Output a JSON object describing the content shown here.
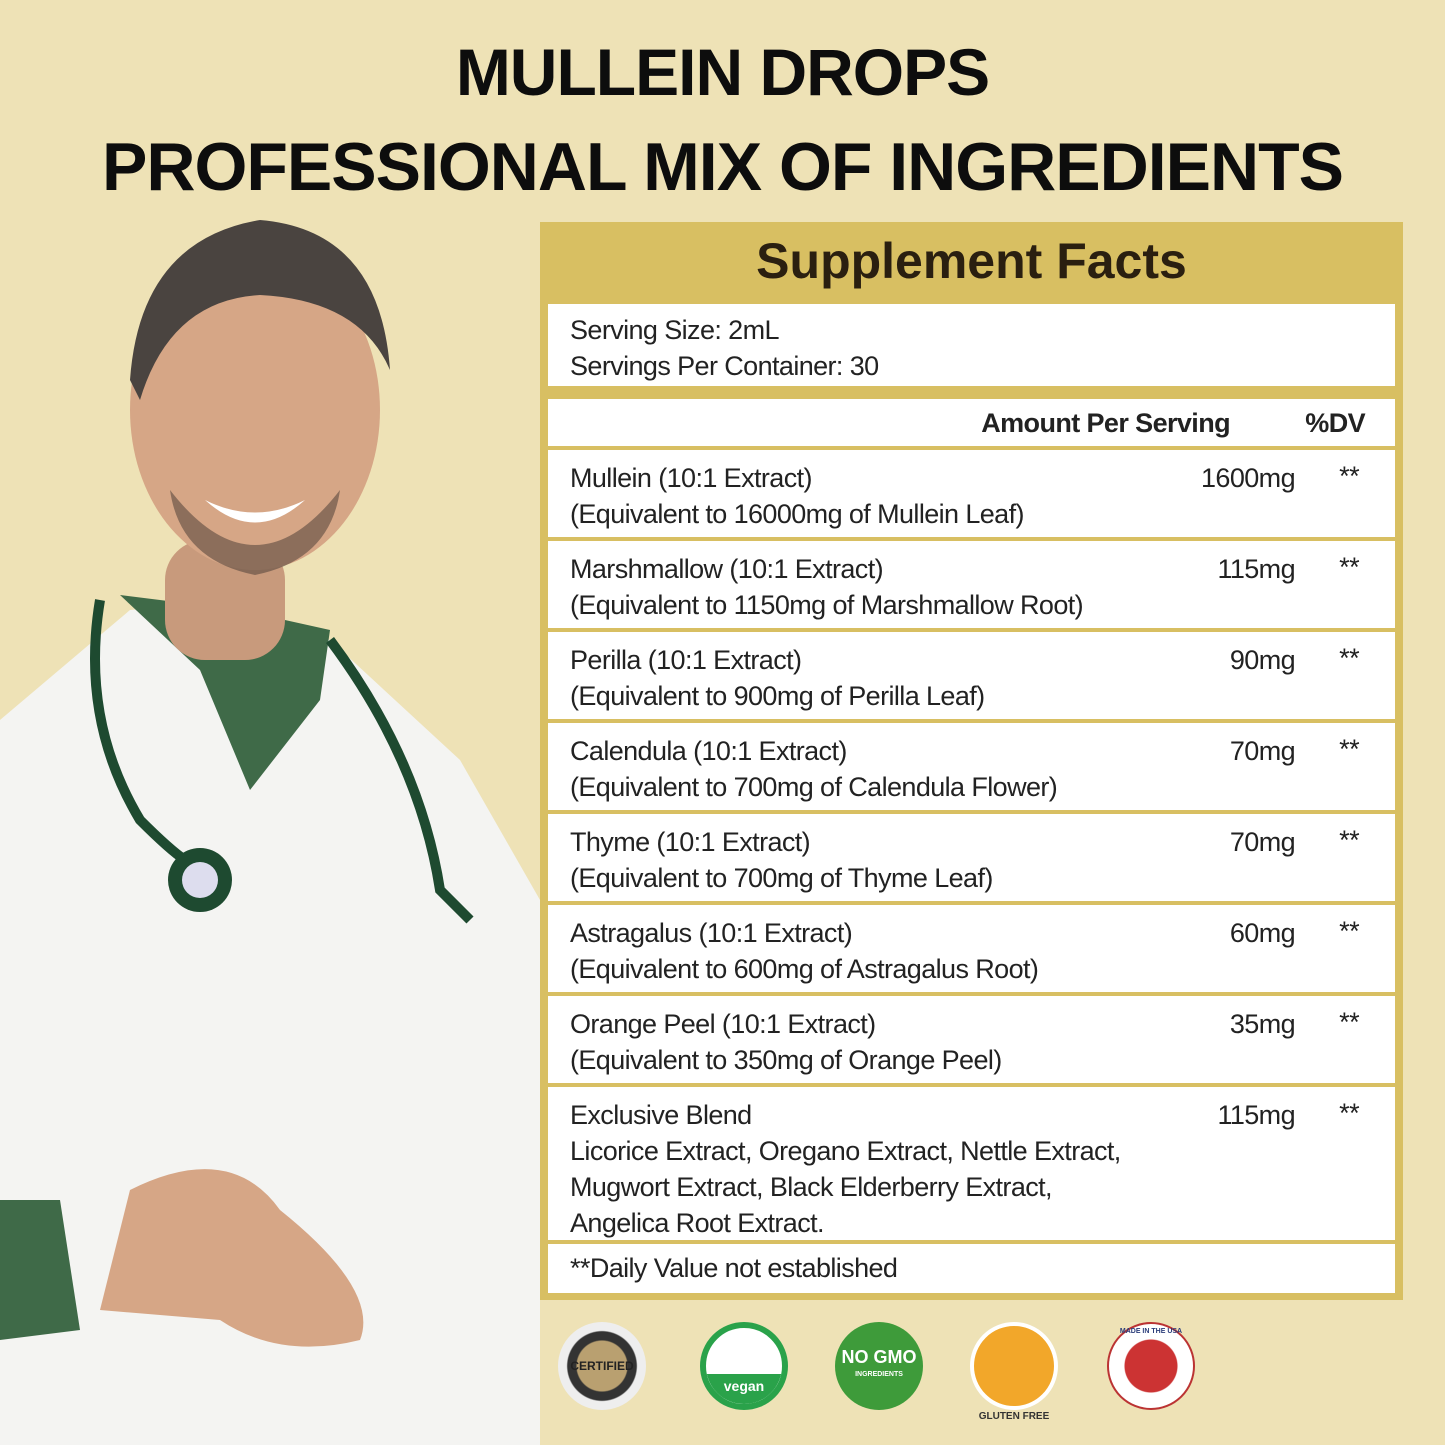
{
  "header": {
    "line1": "MULLEIN DROPS",
    "line2": "PROFESSIONAL MIX OF INGREDIENTS"
  },
  "facts": {
    "title": "Supplement Facts",
    "serving_size": "Serving Size: 2mL",
    "servings_per_container": "Servings Per Container: 30",
    "amount_header": "Amount Per Serving",
    "dv_header": "%DV",
    "rows": [
      {
        "name": "Mullein (10:1 Extract)",
        "equiv": "(Equivalent to 16000mg of Mullein Leaf)",
        "amount": "1600mg",
        "dv": "**"
      },
      {
        "name": "Marshmallow (10:1 Extract)",
        "equiv": "(Equivalent to 1150mg of Marshmallow Root)",
        "amount": "115mg",
        "dv": "**"
      },
      {
        "name": "Perilla (10:1 Extract)",
        "equiv": "(Equivalent to 900mg of Perilla Leaf)",
        "amount": "90mg",
        "dv": "**"
      },
      {
        "name": "Calendula (10:1 Extract)",
        "equiv": "(Equivalent to 700mg of Calendula Flower)",
        "amount": "70mg",
        "dv": "**"
      },
      {
        "name": "Thyme (10:1 Extract)",
        "equiv": "(Equivalent to 700mg of Thyme Leaf)",
        "amount": "70mg",
        "dv": "**"
      },
      {
        "name": "Astragalus (10:1 Extract)",
        "equiv": "(Equivalent to 600mg of Astragalus Root)",
        "amount": "60mg",
        "dv": "**"
      },
      {
        "name": "Orange Peel (10:1 Extract)",
        "equiv": "(Equivalent to 350mg of Orange Peel)",
        "amount": "35mg",
        "dv": "**"
      }
    ],
    "blend": {
      "name": "Exclusive Blend",
      "amount": "115mg",
      "dv": "**",
      "lines": [
        "Licorice Extract, Oregano Extract, Nettle Extract,",
        "Mugwort Extract, Black Elderberry Extract,",
        "Angelica Root Extract."
      ]
    },
    "footnote": "**Daily Value not established"
  },
  "badges": [
    {
      "icon": "certified-seal-icon",
      "text": "CERTIFIED"
    },
    {
      "icon": "vegan-leaf-icon",
      "text": "vegan"
    },
    {
      "icon": "no-gmo-icon",
      "text": "NO GMO",
      "sub": "INGREDIENTS"
    },
    {
      "icon": "gluten-free-icon",
      "text": "GLUTEN FREE"
    },
    {
      "icon": "made-in-usa-icon",
      "text": "MADE IN THE USA"
    }
  ],
  "colors": {
    "background": "#eee2b6",
    "panel_gold": "#d8bf62"
  }
}
